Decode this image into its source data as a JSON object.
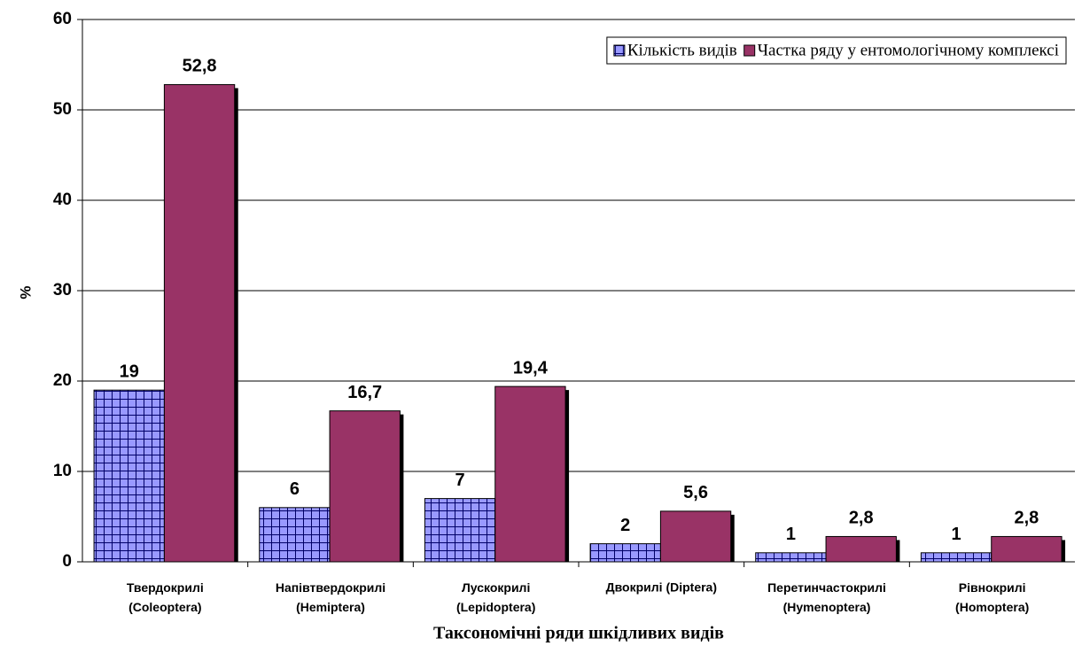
{
  "chart_data": {
    "type": "bar",
    "x_label": "Таксономічні ряди шкідливих видів",
    "y_label": "%",
    "categories": [
      "Твердокрилі (Coleoptera)",
      "Напівтвердокрилі (Hemiptera)",
      "Лускокрилі (Lepidoptera)",
      "Двокрилі (Diptera)",
      "Перетинчастокрилі (Hymenoptera)",
      "Рівнокрилі (Homoptera)"
    ],
    "series": [
      {
        "name": "Кількість видів",
        "color": "#9999ff",
        "values": [
          19,
          6,
          7,
          2,
          1,
          1
        ]
      },
      {
        "name": "Частка ряду у ентомологічному комплексі",
        "color": "#993366",
        "values": [
          52.8,
          16.7,
          19.4,
          5.6,
          2.8,
          2.8
        ],
        "value_labels": [
          "52,8",
          "16,7",
          "19,4",
          "5,6",
          "2,8",
          "2,8"
        ]
      }
    ],
    "ylim": [
      0,
      60
    ],
    "yticks": [
      0,
      10,
      20,
      30,
      40,
      50,
      60
    ],
    "grid": true,
    "legend": "top-right"
  }
}
